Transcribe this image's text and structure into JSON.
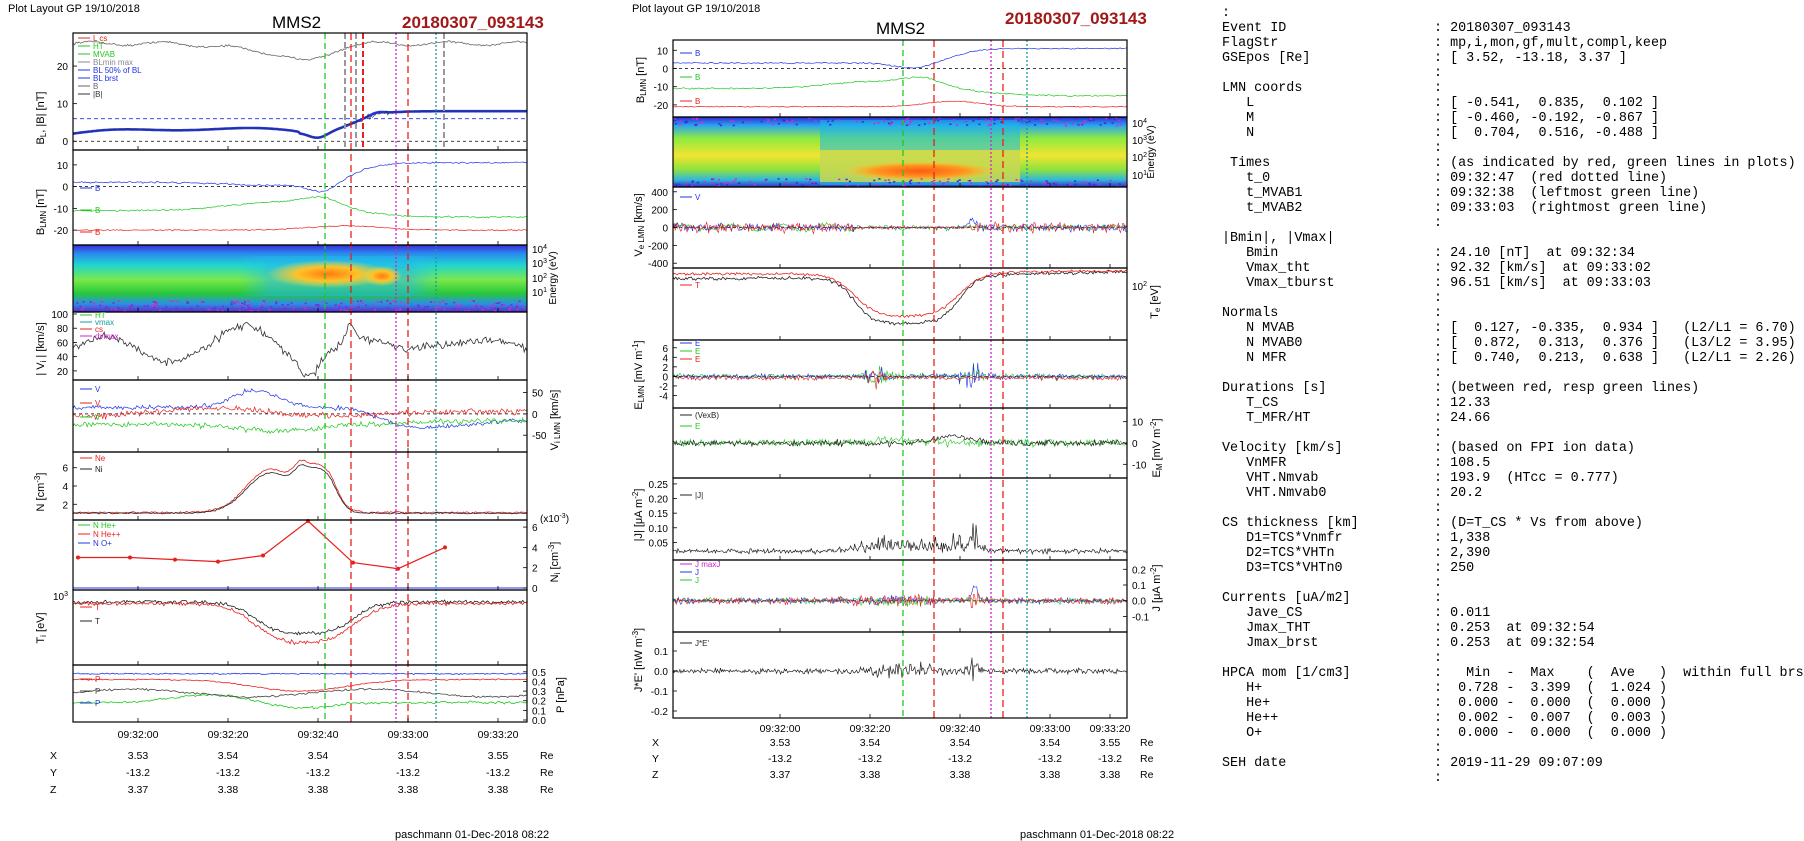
{
  "colors": {
    "red": "#e8201d",
    "green": "#1fc81f",
    "blue": "#1f34e6",
    "black": "#111111",
    "magenta": "#d21fd2",
    "teal": "#149c9c",
    "title_red": "#a01818",
    "grey": "#888888"
  },
  "left_panel": {
    "header": "Plot Layout GP 19/10/2018",
    "title_sc": "MMS2",
    "title_event": "20180307_093143",
    "footer": "paschmann 01-Dec-2018 08:22",
    "ylabels": [
      "B",
      "B",
      "",
      "| V",
      "V",
      "N [cm",
      "N",
      "T",
      "P [nPa]"
    ],
    "ylabel_full": [
      "B_L, |B| [nT]",
      "B_LMN [nT]",
      "Energy (eV)",
      "| V_i | [km/s]",
      "V_i LMN [km/s]",
      "N [cm^-3]",
      "N_i [cm^-3]",
      "T_i [eV]",
      "P [nPa]"
    ],
    "legends": [
      [
        "L cs",
        "HT",
        "MVAB",
        "BLmin max",
        "BL 50% of BL",
        "BL brst",
        "B",
        "|B|"
      ],
      [
        "B",
        "B",
        "B"
      ],
      [],
      [
        "HT",
        "vmax",
        "cs",
        "dvmax"
      ],
      [
        "V",
        "V",
        "V"
      ],
      [
        "Ne",
        "Ni"
      ],
      [
        "N He+",
        "N He++",
        "N O+"
      ],
      [
        "T",
        "T"
      ],
      [
        "P",
        "P",
        "P"
      ]
    ],
    "legend_items": {
      "p0": [
        "L cs",
        "HT",
        "MVAB",
        "BLmin max",
        "BL 50% of BL",
        "BL brst",
        "B",
        "|B|"
      ],
      "p1": [
        "B",
        "B",
        "B"
      ],
      "p3": [
        "HT",
        "vmax",
        "cs",
        "dvmax"
      ],
      "p4": [
        "V",
        "V",
        "V"
      ],
      "p5": [
        "Ne",
        "Ni"
      ],
      "p6": [
        "N He+",
        "N He++",
        "N O+"
      ],
      "p7": [
        "T",
        "T"
      ],
      "p8": [
        "P",
        "P",
        "P"
      ]
    },
    "yticks": {
      "p0": [
        "0",
        "10",
        "20"
      ],
      "p1": [
        "10",
        "0",
        "-10",
        "-20"
      ],
      "p2": [
        "10^4",
        "10^3",
        "10^2",
        "10^1"
      ],
      "p3": [
        "100",
        "80",
        "60",
        "40",
        "20"
      ],
      "p4r": [
        "50",
        "0",
        "-50"
      ],
      "p5": [
        "6",
        "4",
        "2"
      ],
      "p6r": [
        "6",
        "4",
        "2",
        "0"
      ],
      "p7": [
        "10^3"
      ],
      "p8r": [
        "0.5",
        "0.4",
        "0.3",
        "0.2",
        "0.1",
        "0.0"
      ]
    },
    "scale_note": "(x10^-3)",
    "time_ticks": [
      "09:32:00",
      "09:32:20",
      "09:32:40",
      "09:33:00",
      "09:33:20"
    ],
    "pos_rows": [
      {
        "label": "X",
        "values": [
          "3.53",
          "3.54",
          "3.54",
          "3.54",
          "3.55"
        ],
        "unit": "Re"
      },
      {
        "label": "Y",
        "values": [
          "-13.2",
          "-13.2",
          "-13.2",
          "-13.2",
          "-13.2"
        ],
        "unit": "Re"
      },
      {
        "label": "Z",
        "values": [
          "3.37",
          "3.38",
          "3.38",
          "3.38",
          "3.38"
        ],
        "unit": "Re"
      }
    ]
  },
  "right_panel": {
    "header": "Plot layout GP 19/10/2018",
    "title_sc": "MMS2",
    "title_event": "20180307_093143",
    "footer": "paschmann 01-Dec-2018 08:22",
    "ylabel_full": [
      "B_LMN [nT]",
      "Energy (eV)",
      "V_e LMN [km/s]",
      "T_e [eV]",
      "E_LMN [mV m^-1]",
      "E_M [mV m^-1]",
      "|J| [uA m^-2]",
      "J [uA m^-2]",
      "J*E' [nW m^-3]"
    ],
    "legend_items": {
      "p0": [
        "B",
        "B",
        "B"
      ],
      "p2": [
        "V"
      ],
      "p3": [
        "T"
      ],
      "p4": [
        "E",
        "E",
        "E"
      ],
      "p5": [
        "(VexB)",
        "E"
      ],
      "p6": [
        "|J|"
      ],
      "p7": [
        "J maxJ",
        "J",
        "J"
      ],
      "p8": [
        "J*E'"
      ]
    },
    "yticks": {
      "p0": [
        "10",
        "0",
        "-10",
        "-20"
      ],
      "p1": [
        "10^4",
        "10^3",
        "10^2",
        "10^1"
      ],
      "p2": [
        "400",
        "200",
        "0",
        "-200",
        "-400"
      ],
      "p3r": [
        "10^2"
      ],
      "p4": [
        "6",
        "4",
        "2",
        "0",
        "-2",
        "-4"
      ],
      "p5r": [
        "10",
        "0",
        "-10"
      ],
      "p6": [
        "0.25",
        "0.20",
        "0.15",
        "0.10",
        "0.05"
      ],
      "p7r": [
        "0.2",
        "0.1",
        "0.0",
        "-0.1"
      ],
      "p8": [
        "0.1",
        "0.0",
        "-0.1",
        "-0.2"
      ]
    },
    "time_ticks": [
      "09:32:00",
      "09:32:20",
      "09:32:40",
      "09:33:00",
      "09:33:20"
    ],
    "pos_rows": [
      {
        "label": "X",
        "values": [
          "3.53",
          "3.54",
          "3.54",
          "3.54",
          "3.55"
        ],
        "unit": "Re"
      },
      {
        "label": "Y",
        "values": [
          "-13.2",
          "-13.2",
          "-13.2",
          "-13.2",
          "-13.2"
        ],
        "unit": "Re"
      },
      {
        "label": "Z",
        "values": [
          "3.37",
          "3.38",
          "3.38",
          "3.38",
          "3.38"
        ],
        "unit": "Re"
      }
    ]
  },
  "info_lines": [
    [
      ":",
      ""
    ],
    [
      "Event ID",
      ": 20180307_093143"
    ],
    [
      "FlagStr",
      ": mp,i,mon,gf,mult,compl,keep"
    ],
    [
      "GSEpos [Re]",
      ": [ 3.52, -13.18, 3.37 ]"
    ],
    [
      "",
      ":"
    ],
    [
      "LMN coords",
      ":"
    ],
    [
      "   L",
      ": [ -0.541,  0.835,  0.102 ]"
    ],
    [
      "   M",
      ": [ -0.460, -0.192, -0.867 ]"
    ],
    [
      "   N",
      ": [  0.704,  0.516, -0.488 ]"
    ],
    [
      "",
      ":"
    ],
    [
      " Times",
      ": (as indicated by red, green lines in plots)"
    ],
    [
      "   t_0",
      ": 09:32:47  (red dotted line)"
    ],
    [
      "   t_MVAB1",
      ": 09:32:38  (leftmost green line)"
    ],
    [
      "   t_MVAB2",
      ": 09:33:03  (rightmost green line)"
    ],
    [
      "",
      ":"
    ],
    [
      "|Bmin|, |Vmax|",
      ""
    ],
    [
      "   Bmin",
      ": 24.10 [nT]  at 09:32:34"
    ],
    [
      "   Vmax_tht",
      ": 92.32 [km/s]  at 09:33:02"
    ],
    [
      "   Vmax_tburst",
      ": 96.51 [km/s]  at 09:33:03"
    ],
    [
      "",
      ":"
    ],
    [
      "Normals",
      ":"
    ],
    [
      "   N MVAB",
      ": [  0.127, -0.335,  0.934 ]   (L2/L1 = 6.70)"
    ],
    [
      "   N MVAB0",
      ": [  0.872,  0.313,  0.376 ]   (L3/L2 = 3.95)"
    ],
    [
      "   N MFR",
      ": [  0.740,  0.213,  0.638 ]   (L2/L1 = 2.26)"
    ],
    [
      "",
      ":"
    ],
    [
      "Durations [s]",
      ": (between red, resp green lines)"
    ],
    [
      "   T_CS",
      ": 12.33"
    ],
    [
      "   T_MFR/HT",
      ": 24.66"
    ],
    [
      "",
      ":"
    ],
    [
      "Velocity [km/s]",
      ": (based on FPI ion data)"
    ],
    [
      "   VnMFR",
      ": 108.5"
    ],
    [
      "   VHT.Nmvab",
      ": 193.9  (HTcc = 0.777)"
    ],
    [
      "   VHT.Nmvab0",
      ": 20.2"
    ],
    [
      "",
      ":"
    ],
    [
      "CS thickness [km]",
      ": (D=T_CS * Vs from above)"
    ],
    [
      "   D1=TCS*Vnmfr",
      ": 1,338"
    ],
    [
      "   D2=TCS*VHTn",
      ": 2,390"
    ],
    [
      "   D3=TCS*VHTn0",
      ": 250"
    ],
    [
      "",
      ":"
    ],
    [
      "Currents [uA/m2]",
      ":"
    ],
    [
      "   Jave_CS",
      ": 0.011"
    ],
    [
      "   Jmax_THT",
      ": 0.253  at 09:32:54"
    ],
    [
      "   Jmax_brst",
      ": 0.253  at 09:32:54"
    ],
    [
      "",
      ":"
    ],
    [
      "HPCA mom [1/cm3]",
      ":   Min  -  Max    (  Ave   )  within full brst int"
    ],
    [
      "   H+",
      ":  0.728 -  3.399  (  1.024 )"
    ],
    [
      "   He+",
      ":  0.000 -  0.000  (  0.000 )"
    ],
    [
      "   He++",
      ":  0.002 -  0.007  (  0.003 )"
    ],
    [
      "   O+",
      ":  0.000 -  0.000  (  0.000 )"
    ],
    [
      "",
      ":"
    ],
    [
      "SEH date",
      ": 2019-11-29 09:07:09"
    ],
    [
      "",
      ":"
    ]
  ],
  "chart_data": [
    {
      "type": "line",
      "title": "MMS2 20180307_093143 (left panel)",
      "time_range": [
        "09:31:43",
        "09:33:23"
      ],
      "markers": {
        "t_0": "09:32:47",
        "t_MVAB1": "09:32:38",
        "t_MVAB2": "09:33:03"
      },
      "panels": [
        {
          "ylabel": "B_L, |B| [nT]",
          "ylim": [
            -1,
            28
          ],
          "series": [
            {
              "name": "|B|",
              "approx": "26 falling to 24 near 09:32:35, back to ~27"
            },
            {
              "name": "B_L",
              "approx": "~2 rising to ~8.5"
            }
          ]
        },
        {
          "ylabel": "B_LMN [nT]",
          "ylim": [
            -25,
            15
          ]
        },
        {
          "ylabel": "Energy (eV)",
          "ylim": [
            10,
            20000
          ],
          "kind": "spectrogram"
        },
        {
          "ylabel": "| V_i | [km/s]",
          "ylim": [
            10,
            100
          ]
        },
        {
          "ylabel": "V_i LMN [km/s]",
          "ylim": [
            -80,
            70
          ]
        },
        {
          "ylabel": "N [cm^-3]",
          "ylim": [
            0.5,
            7.5
          ],
          "series": [
            {
              "name": "Ne"
            },
            {
              "name": "Ni"
            }
          ]
        },
        {
          "ylabel": "N_i [cm^-3] (x10^-3)",
          "ylim": [
            0,
            6.5
          ],
          "series": [
            {
              "name": "N He++",
              "x": [
                "09:31:45",
                "09:31:55",
                "09:32:05",
                "09:32:14",
                "09:32:24",
                "09:32:34",
                "09:32:44",
                "09:32:54",
                "09:33:04"
              ],
              "values": [
                3.0,
                3.0,
                2.8,
                2.6,
                3.2,
                6.6,
                2.5,
                1.9,
                4.0
              ]
            }
          ]
        },
        {
          "ylabel": "T_i [eV]",
          "kind": "log"
        },
        {
          "ylabel": "P [nPa]",
          "ylim": [
            0,
            0.55
          ]
        }
      ]
    },
    {
      "type": "line",
      "title": "MMS2 20180307_093143 (right panel)",
      "time_range": [
        "09:31:43",
        "09:33:23"
      ],
      "panels": [
        {
          "ylabel": "B_LMN [nT]",
          "ylim": [
            -25,
            14
          ]
        },
        {
          "ylabel": "Energy (eV)",
          "ylim": [
            10,
            20000
          ],
          "kind": "spectrogram"
        },
        {
          "ylabel": "V_e LMN [km/s]",
          "ylim": [
            -420,
            420
          ]
        },
        {
          "ylabel": "T_e [eV]",
          "kind": "log"
        },
        {
          "ylabel": "E_LMN [mV m^-1]",
          "ylim": [
            -6,
            7
          ]
        },
        {
          "ylabel": "E_M [mV m^-1]",
          "ylim": [
            -15,
            15
          ]
        },
        {
          "ylabel": "|J| [uA m^-2]",
          "ylim": [
            0,
            0.26
          ]
        },
        {
          "ylabel": "J [uA m^-2]",
          "ylim": [
            -0.18,
            0.24
          ]
        },
        {
          "ylabel": "J*E' [nW m^-3]",
          "ylim": [
            -0.22,
            0.18
          ]
        }
      ]
    }
  ]
}
